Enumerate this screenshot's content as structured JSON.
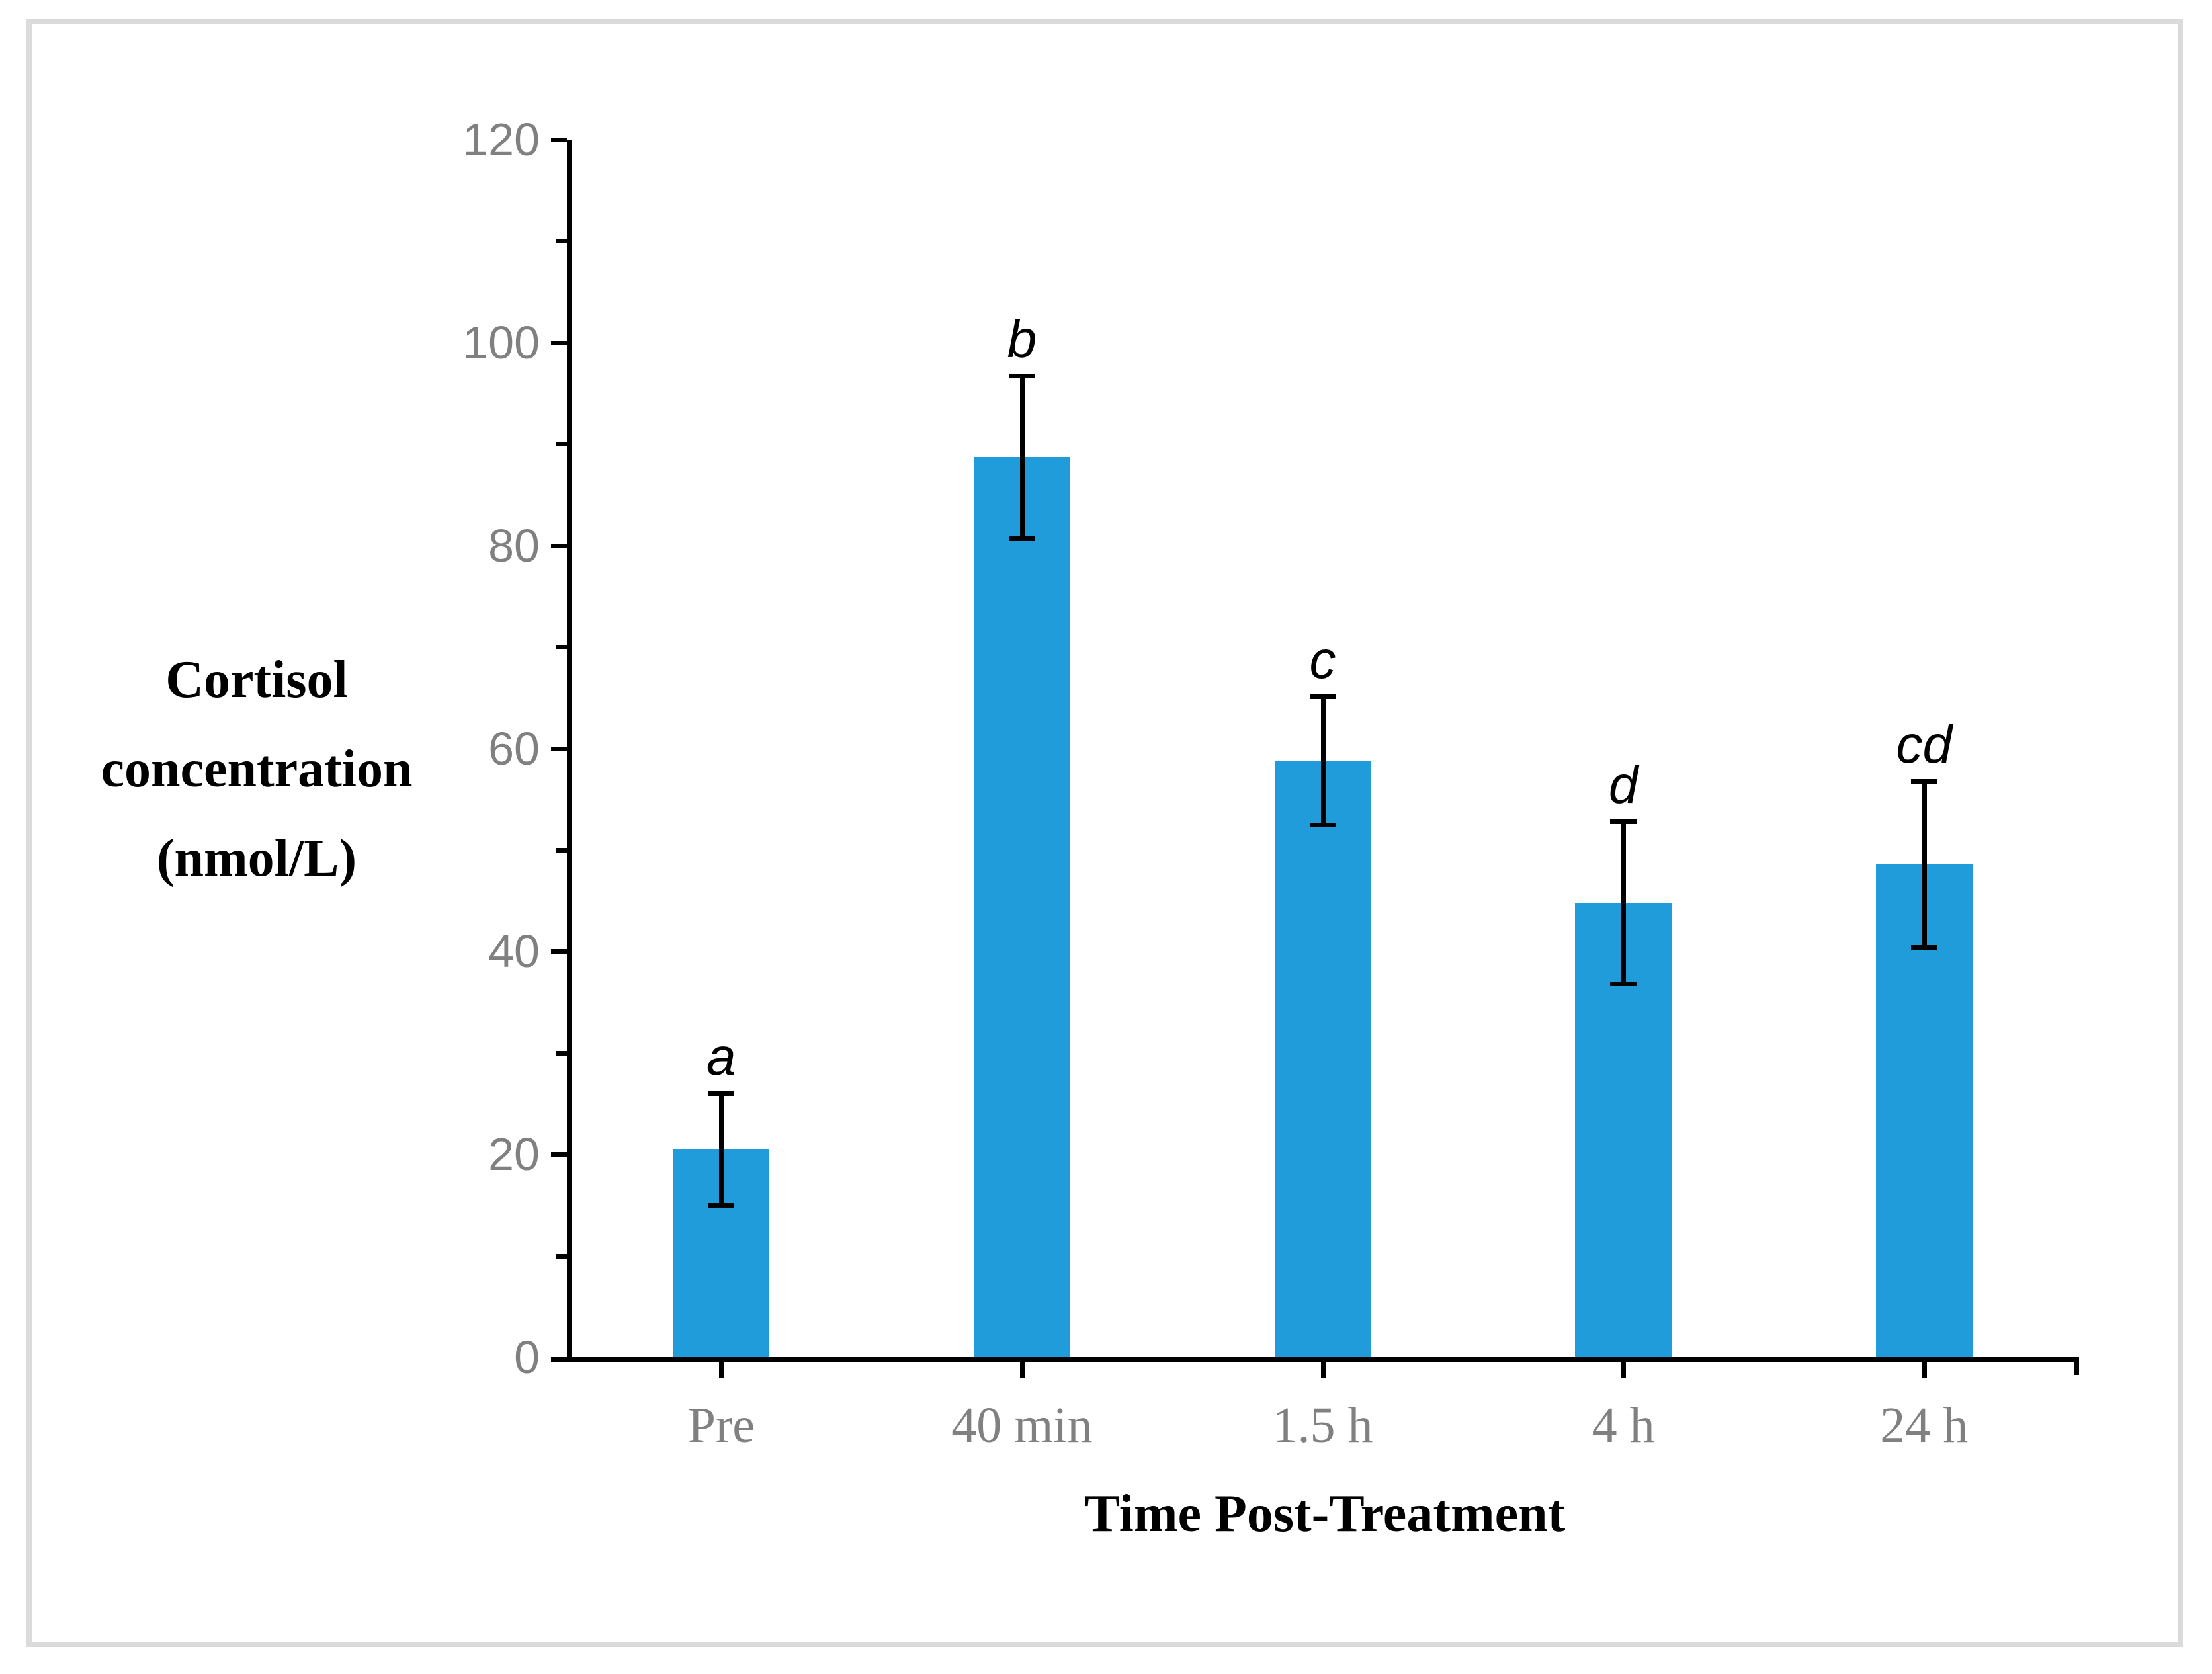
{
  "figure": {
    "background_color": "#FFFFFF",
    "frame_color": "#DBDBDB"
  },
  "chart_data": {
    "type": "bar",
    "title": "",
    "categories": [
      "Pre",
      "40 min",
      "1.5 h",
      "4 h",
      "24 h"
    ],
    "values": [
      20.5,
      88.7,
      58.8,
      44.8,
      48.6
    ],
    "error_bars": [
      5.5,
      8.0,
      6.3,
      8.0,
      8.2
    ],
    "sig_letters": [
      "a",
      "b",
      "c",
      "d",
      "cd"
    ],
    "xlabel": "Time Post-Treatment",
    "ylabel_lines": [
      "Cortisol",
      "concentration",
      "(nmol/L)"
    ],
    "ylim": [
      0,
      120
    ],
    "y_major_step": 20,
    "y_minor_step": 10,
    "y_tick_labels": [
      "0",
      "20",
      "40",
      "60",
      "80",
      "100",
      "120"
    ],
    "grid": false,
    "legend": "none",
    "bar_color": "#1F9CD9",
    "axis_color": "#000000",
    "tick_label_color": "#808080",
    "sig_letter_color": "#000000"
  }
}
